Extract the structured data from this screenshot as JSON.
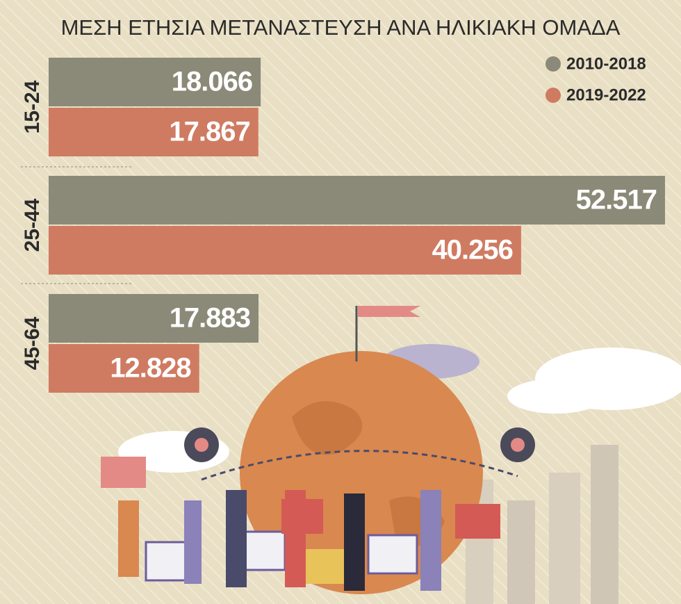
{
  "chart_data": {
    "type": "bar",
    "orientation": "horizontal",
    "title": "ΜΕΣΗ ΕΤΗΣΙΑ ΜΕΤΑΝΑΣΤΕΥΣΗ ΑΝΑ ΗΛΙΚΙΑΚΗ ΟΜΑΔΑ",
    "categories": [
      "15-24",
      "25-44",
      "45-64"
    ],
    "series": [
      {
        "name": "2010-2018",
        "color": "#8b8a78",
        "values": [
          18066,
          52517,
          17883
        ],
        "value_labels": [
          "18.066",
          "52.517",
          "17.883"
        ]
      },
      {
        "name": "2019-2022",
        "color": "#cf7b62",
        "values": [
          17867,
          40256,
          12828
        ],
        "value_labels": [
          "17.867",
          "40.256",
          "12.828"
        ]
      }
    ],
    "legend": "top-right"
  }
}
